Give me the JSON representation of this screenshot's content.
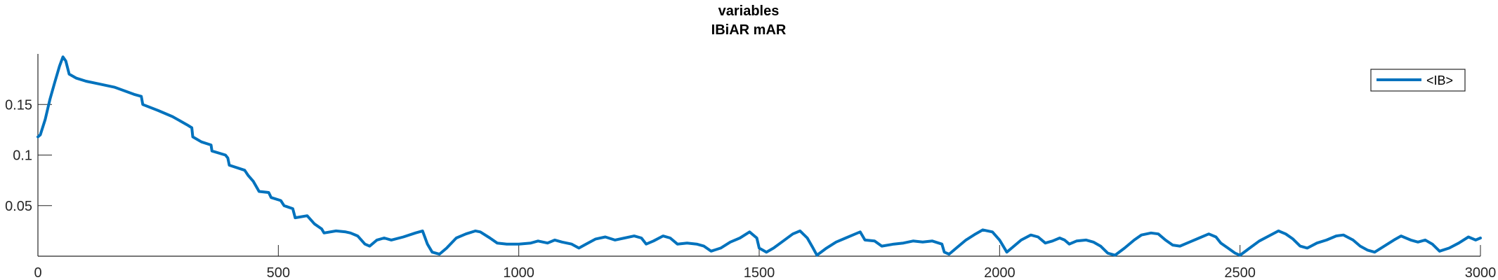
{
  "chart_data": {
    "type": "line",
    "title": "variables",
    "subtitle": "IBiAR mAR",
    "xlabel": "",
    "ylabel": "",
    "xlim": [
      0,
      3000
    ],
    "ylim": [
      0,
      0.2
    ],
    "x_ticks": [
      0,
      500,
      1000,
      1500,
      2000,
      2500,
      3000
    ],
    "x_tick_labels": [
      "0",
      "500",
      "1000",
      "1500",
      "2000",
      "2500",
      "3000"
    ],
    "y_ticks": [
      0.05,
      0.1,
      0.15
    ],
    "y_tick_labels": [
      "0.05",
      "0.1",
      "0.15"
    ],
    "grid": false,
    "legend_position": "top-right",
    "series": [
      {
        "name": "<IB>",
        "color": "#0072BD",
        "points": [
          [
            0,
            0.118
          ],
          [
            5,
            0.12
          ],
          [
            15,
            0.135
          ],
          [
            25,
            0.155
          ],
          [
            35,
            0.172
          ],
          [
            45,
            0.188
          ],
          [
            52,
            0.197
          ],
          [
            58,
            0.193
          ],
          [
            65,
            0.18
          ],
          [
            80,
            0.176
          ],
          [
            100,
            0.173
          ],
          [
            130,
            0.17
          ],
          [
            160,
            0.167
          ],
          [
            200,
            0.16
          ],
          [
            215,
            0.158
          ],
          [
            218,
            0.15
          ],
          [
            250,
            0.144
          ],
          [
            280,
            0.138
          ],
          [
            310,
            0.13
          ],
          [
            320,
            0.127
          ],
          [
            322,
            0.118
          ],
          [
            340,
            0.113
          ],
          [
            360,
            0.11
          ],
          [
            362,
            0.104
          ],
          [
            390,
            0.1
          ],
          [
            395,
            0.097
          ],
          [
            398,
            0.09
          ],
          [
            430,
            0.085
          ],
          [
            437,
            0.08
          ],
          [
            448,
            0.074
          ],
          [
            460,
            0.064
          ],
          [
            480,
            0.063
          ],
          [
            485,
            0.058
          ],
          [
            505,
            0.055
          ],
          [
            512,
            0.05
          ],
          [
            530,
            0.047
          ],
          [
            535,
            0.038
          ],
          [
            560,
            0.04
          ],
          [
            575,
            0.032
          ],
          [
            590,
            0.027
          ],
          [
            595,
            0.023
          ],
          [
            620,
            0.025
          ],
          [
            640,
            0.024
          ],
          [
            650,
            0.023
          ],
          [
            665,
            0.02
          ],
          [
            680,
            0.012
          ],
          [
            690,
            0.01
          ],
          [
            705,
            0.016
          ],
          [
            720,
            0.018
          ],
          [
            735,
            0.016
          ],
          [
            760,
            0.019
          ],
          [
            785,
            0.023
          ],
          [
            800,
            0.025
          ],
          [
            810,
            0.012
          ],
          [
            820,
            0.004
          ],
          [
            835,
            0.002
          ],
          [
            850,
            0.008
          ],
          [
            870,
            0.018
          ],
          [
            890,
            0.022
          ],
          [
            910,
            0.025
          ],
          [
            920,
            0.024
          ],
          [
            940,
            0.018
          ],
          [
            955,
            0.013
          ],
          [
            975,
            0.012
          ],
          [
            1000,
            0.012
          ],
          [
            1025,
            0.013
          ],
          [
            1040,
            0.015
          ],
          [
            1060,
            0.013
          ],
          [
            1075,
            0.016
          ],
          [
            1090,
            0.014
          ],
          [
            1110,
            0.012
          ],
          [
            1125,
            0.008
          ],
          [
            1140,
            0.012
          ],
          [
            1160,
            0.017
          ],
          [
            1180,
            0.019
          ],
          [
            1200,
            0.016
          ],
          [
            1220,
            0.018
          ],
          [
            1240,
            0.02
          ],
          [
            1255,
            0.018
          ],
          [
            1265,
            0.012
          ],
          [
            1280,
            0.015
          ],
          [
            1300,
            0.02
          ],
          [
            1315,
            0.018
          ],
          [
            1330,
            0.012
          ],
          [
            1350,
            0.013
          ],
          [
            1370,
            0.012
          ],
          [
            1385,
            0.01
          ],
          [
            1400,
            0.005
          ],
          [
            1420,
            0.008
          ],
          [
            1440,
            0.014
          ],
          [
            1460,
            0.018
          ],
          [
            1480,
            0.024
          ],
          [
            1495,
            0.018
          ],
          [
            1500,
            0.008
          ],
          [
            1515,
            0.004
          ],
          [
            1530,
            0.008
          ],
          [
            1550,
            0.015
          ],
          [
            1570,
            0.022
          ],
          [
            1585,
            0.025
          ],
          [
            1600,
            0.018
          ],
          [
            1612,
            0.008
          ],
          [
            1620,
            0.001
          ],
          [
            1640,
            0.008
          ],
          [
            1660,
            0.014
          ],
          [
            1680,
            0.018
          ],
          [
            1700,
            0.022
          ],
          [
            1710,
            0.024
          ],
          [
            1720,
            0.016
          ],
          [
            1740,
            0.015
          ],
          [
            1755,
            0.01
          ],
          [
            1780,
            0.012
          ],
          [
            1800,
            0.013
          ],
          [
            1820,
            0.015
          ],
          [
            1840,
            0.014
          ],
          [
            1860,
            0.015
          ],
          [
            1880,
            0.012
          ],
          [
            1885,
            0.004
          ],
          [
            1895,
            0.002
          ],
          [
            1910,
            0.008
          ],
          [
            1930,
            0.016
          ],
          [
            1950,
            0.022
          ],
          [
            1965,
            0.026
          ],
          [
            1985,
            0.024
          ],
          [
            2000,
            0.016
          ],
          [
            2015,
            0.004
          ],
          [
            2025,
            0.008
          ],
          [
            2045,
            0.016
          ],
          [
            2065,
            0.021
          ],
          [
            2080,
            0.019
          ],
          [
            2095,
            0.013
          ],
          [
            2110,
            0.015
          ],
          [
            2125,
            0.018
          ],
          [
            2135,
            0.016
          ],
          [
            2145,
            0.012
          ],
          [
            2160,
            0.015
          ],
          [
            2180,
            0.016
          ],
          [
            2195,
            0.014
          ],
          [
            2210,
            0.01
          ],
          [
            2225,
            0.003
          ],
          [
            2240,
            0.001
          ],
          [
            2260,
            0.008
          ],
          [
            2280,
            0.016
          ],
          [
            2295,
            0.021
          ],
          [
            2315,
            0.023
          ],
          [
            2330,
            0.022
          ],
          [
            2345,
            0.016
          ],
          [
            2360,
            0.011
          ],
          [
            2375,
            0.01
          ],
          [
            2395,
            0.014
          ],
          [
            2415,
            0.018
          ],
          [
            2435,
            0.022
          ],
          [
            2450,
            0.019
          ],
          [
            2460,
            0.013
          ],
          [
            2475,
            0.008
          ],
          [
            2490,
            0.003
          ],
          [
            2500,
            0.001
          ],
          [
            2520,
            0.008
          ],
          [
            2540,
            0.015
          ],
          [
            2560,
            0.02
          ],
          [
            2580,
            0.025
          ],
          [
            2595,
            0.022
          ],
          [
            2610,
            0.017
          ],
          [
            2625,
            0.01
          ],
          [
            2640,
            0.008
          ],
          [
            2660,
            0.013
          ],
          [
            2680,
            0.016
          ],
          [
            2700,
            0.02
          ],
          [
            2715,
            0.021
          ],
          [
            2735,
            0.016
          ],
          [
            2750,
            0.01
          ],
          [
            2765,
            0.006
          ],
          [
            2780,
            0.004
          ],
          [
            2800,
            0.01
          ],
          [
            2820,
            0.016
          ],
          [
            2835,
            0.02
          ],
          [
            2855,
            0.016
          ],
          [
            2870,
            0.014
          ],
          [
            2885,
            0.016
          ],
          [
            2900,
            0.012
          ],
          [
            2915,
            0.005
          ],
          [
            2935,
            0.008
          ],
          [
            2955,
            0.013
          ],
          [
            2975,
            0.019
          ],
          [
            2990,
            0.016
          ],
          [
            3000,
            0.018
          ]
        ]
      }
    ]
  }
}
